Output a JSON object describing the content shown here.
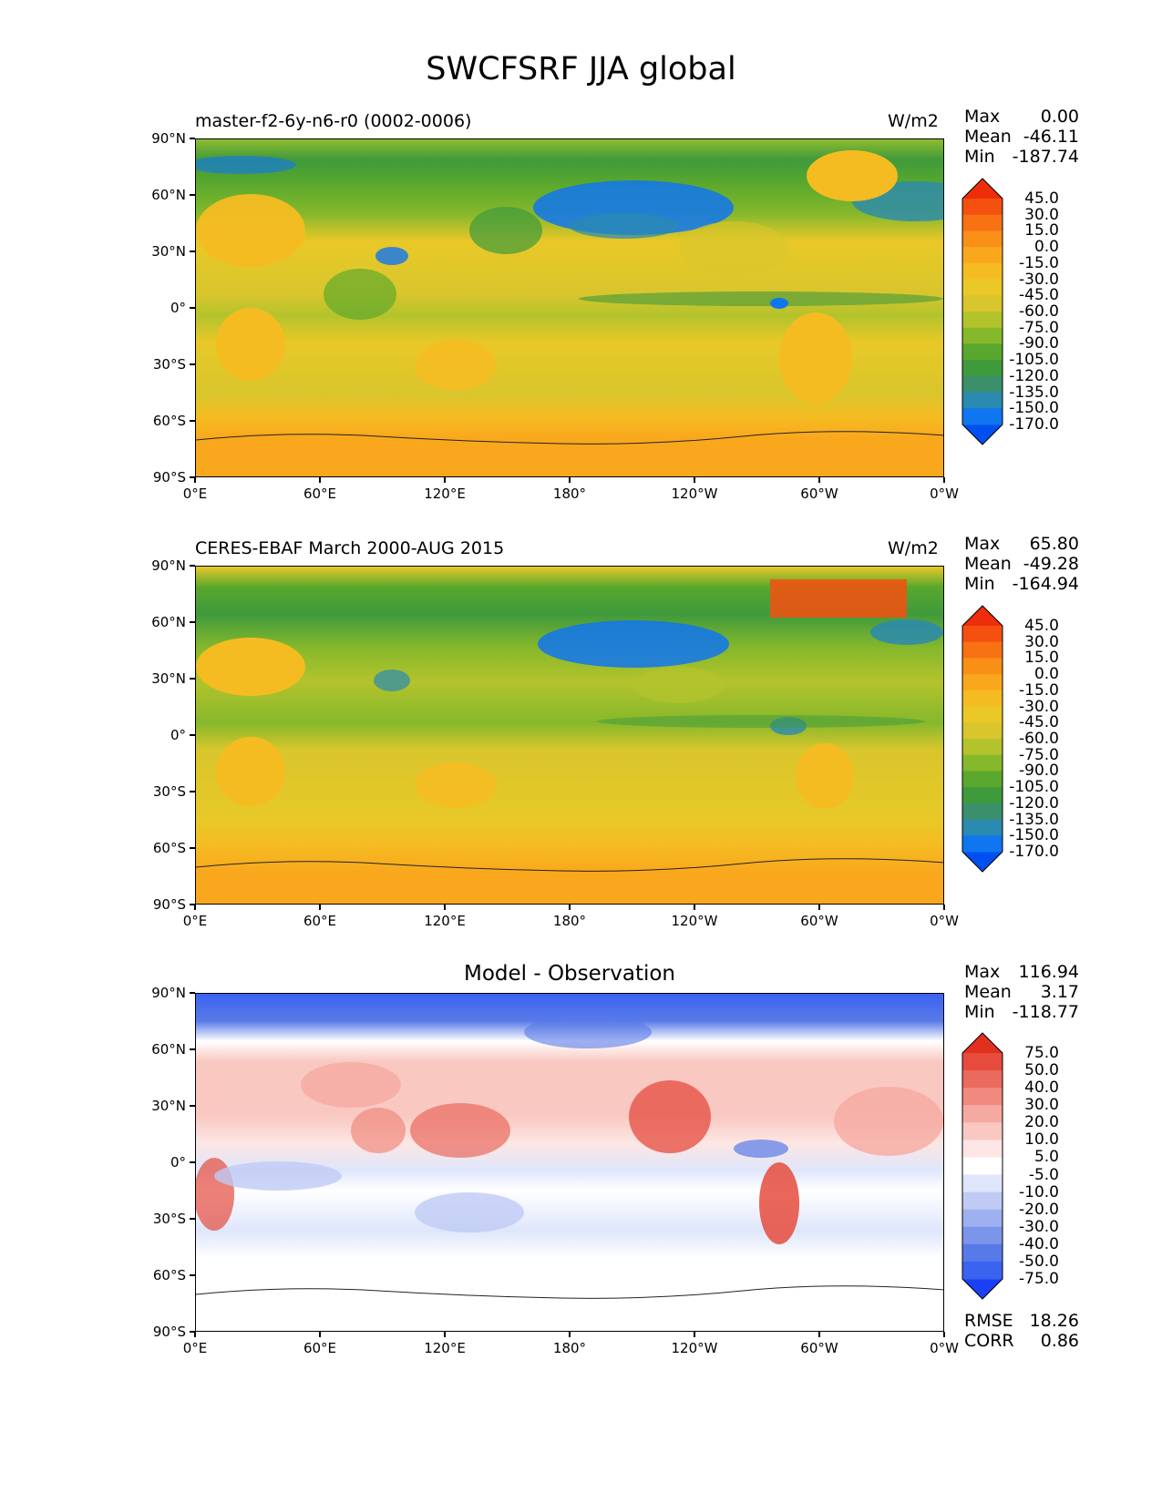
{
  "figure": {
    "title": "SWCFSRF JJA global"
  },
  "lon_ticks": [
    "0°E",
    "60°E",
    "120°E",
    "180°",
    "120°W",
    "60°W",
    "0°W"
  ],
  "lat_ticks": [
    "90°N",
    "60°N",
    "30°N",
    "0°",
    "30°S",
    "60°S",
    "90°S"
  ],
  "panels": [
    {
      "title": "master-f2-6y-n6-r0 (0002-0006)",
      "units": "W/m2",
      "stats": [
        {
          "label": "Max",
          "value": "0.00"
        },
        {
          "label": "Mean",
          "value": "-46.11"
        },
        {
          "label": "Min",
          "value": "-187.74"
        }
      ],
      "colorbar_labels": [
        "45.0",
        "30.0",
        "15.0",
        "0.0",
        "-15.0",
        "-30.0",
        "-45.0",
        "-60.0",
        "-75.0",
        "-90.0",
        "-105.0",
        "-120.0",
        "-135.0",
        "-150.0",
        "-170.0"
      ],
      "colorbar_colors": [
        "#0050f0",
        "#1075f0",
        "#2a8ab0",
        "#3b8f6a",
        "#3f9a3c",
        "#59a82d",
        "#86b82c",
        "#b3c32c",
        "#d8c62c",
        "#e9c828",
        "#f5bc22",
        "#f9a81d",
        "#fa8f18",
        "#f87214",
        "#f45010",
        "#ee2d0b"
      ]
    },
    {
      "title": "CERES-EBAF March 2000-AUG 2015",
      "units": "W/m2",
      "stats": [
        {
          "label": "Max",
          "value": "65.80"
        },
        {
          "label": "Mean",
          "value": "-49.28"
        },
        {
          "label": "Min",
          "value": "-164.94"
        }
      ],
      "colorbar_labels": [
        "45.0",
        "30.0",
        "15.0",
        "0.0",
        "-15.0",
        "-30.0",
        "-45.0",
        "-60.0",
        "-75.0",
        "-90.0",
        "-105.0",
        "-120.0",
        "-135.0",
        "-150.0",
        "-170.0"
      ],
      "colorbar_colors": [
        "#0050f0",
        "#1075f0",
        "#2a8ab0",
        "#3b8f6a",
        "#3f9a3c",
        "#59a82d",
        "#86b82c",
        "#b3c32c",
        "#d8c62c",
        "#e9c828",
        "#f5bc22",
        "#f9a81d",
        "#fa8f18",
        "#f87214",
        "#f45010",
        "#ee2d0b"
      ]
    },
    {
      "title": "Model - Observation",
      "units": "",
      "stats": [
        {
          "label": "Max",
          "value": "116.94"
        },
        {
          "label": "Mean",
          "value": "3.17"
        },
        {
          "label": "Min",
          "value": "-118.77"
        }
      ],
      "colorbar_labels": [
        "75.0",
        "50.0",
        "40.0",
        "30.0",
        "20.0",
        "10.0",
        "5.0",
        "-5.0",
        "-10.0",
        "-20.0",
        "-30.0",
        "-40.0",
        "-50.0",
        "-75.0"
      ],
      "colorbar_colors": [
        "#1a40f5",
        "#3a63f0",
        "#587ae8",
        "#7b95ea",
        "#9eb0ef",
        "#bfcbf5",
        "#dfe6fb",
        "#ffffff",
        "#fde6e3",
        "#f9c8c1",
        "#f5aaa1",
        "#f08a7f",
        "#ea6a5e",
        "#e64b3d",
        "#e2301f"
      ],
      "footer_stats": [
        {
          "label": "RMSE",
          "value": "18.26"
        },
        {
          "label": "CORR",
          "value": "0.86"
        }
      ]
    }
  ],
  "chart_data": [
    {
      "type": "heatmap",
      "title": "master-f2-6y-n6-r0 (0002-0006)",
      "units": "W/m2",
      "x_range": [
        "0°E",
        "0°W"
      ],
      "y_range": [
        "90°S",
        "90°N"
      ],
      "stats": {
        "max": 0.0,
        "mean": -46.11,
        "min": -187.74
      },
      "contour_levels": [
        -170,
        -150,
        -135,
        -120,
        -105,
        -90,
        -75,
        -60,
        -45,
        -30,
        -15,
        0,
        15,
        30,
        45
      ]
    },
    {
      "type": "heatmap",
      "title": "CERES-EBAF March 2000-AUG 2015",
      "units": "W/m2",
      "x_range": [
        "0°E",
        "0°W"
      ],
      "y_range": [
        "90°S",
        "90°N"
      ],
      "stats": {
        "max": 65.8,
        "mean": -49.28,
        "min": -164.94
      },
      "contour_levels": [
        -170,
        -150,
        -135,
        -120,
        -105,
        -90,
        -75,
        -60,
        -45,
        -30,
        -15,
        0,
        15,
        30,
        45
      ]
    },
    {
      "type": "heatmap",
      "title": "Model - Observation",
      "x_range": [
        "0°E",
        "0°W"
      ],
      "y_range": [
        "90°S",
        "90°N"
      ],
      "stats": {
        "max": 116.94,
        "mean": 3.17,
        "min": -118.77,
        "rmse": 18.26,
        "corr": 0.86
      },
      "contour_levels": [
        -75,
        -50,
        -40,
        -30,
        -20,
        -10,
        -5,
        5,
        10,
        20,
        30,
        40,
        50,
        75
      ]
    }
  ]
}
